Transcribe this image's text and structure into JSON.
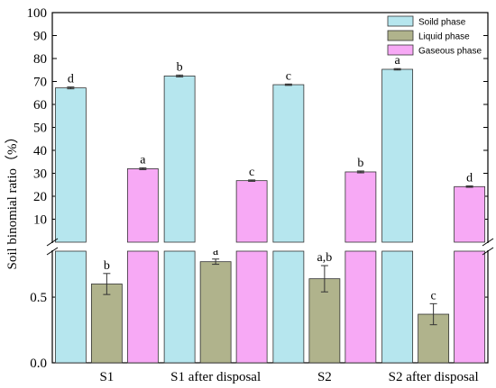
{
  "chart_data": {
    "type": "bar",
    "title": "",
    "xlabel": "",
    "ylabel": "Soil binomial ratio（%）",
    "categories": [
      "S1",
      "S1 after disposal",
      "S2",
      "S2 after disposal"
    ],
    "broken_axis": true,
    "upper_segment": {
      "ylim": [
        0,
        100
      ],
      "ticks": [
        "100",
        "90",
        "80",
        "70",
        "60",
        "50",
        "40",
        "30",
        "20",
        "10"
      ]
    },
    "lower_segment": {
      "ylim": [
        0,
        0.85
      ],
      "ticks": [
        "0.0",
        "0.5"
      ]
    },
    "series": [
      {
        "name": "Soild phase",
        "color": "#b6e6ee",
        "segment": "upper",
        "values": [
          67.2,
          72.4,
          68.6,
          75.3
        ],
        "errors": [
          0.4,
          0.4,
          0.3,
          0.3
        ],
        "sig": [
          "d",
          "b",
          "c",
          "a"
        ]
      },
      {
        "name": "Liquid phase",
        "color": "#b0b38c",
        "segment": "lower",
        "values": [
          0.6,
          0.77,
          0.64,
          0.37
        ],
        "errors": [
          0.08,
          0.02,
          0.1,
          0.08
        ],
        "sig": [
          "b",
          "a",
          "a,b",
          "c"
        ]
      },
      {
        "name": "Gaseous phase",
        "color": "#f7a9f5",
        "segment": "upper",
        "values": [
          32.0,
          26.8,
          30.6,
          24.2
        ],
        "errors": [
          0.4,
          0.3,
          0.4,
          0.3
        ],
        "sig": [
          "a",
          "c",
          "b",
          "d"
        ]
      }
    ],
    "legend": {
      "position": "top-right",
      "entries": [
        "Soild phase",
        "Liquid phase",
        "Gaseous phase"
      ]
    },
    "grid": false
  }
}
